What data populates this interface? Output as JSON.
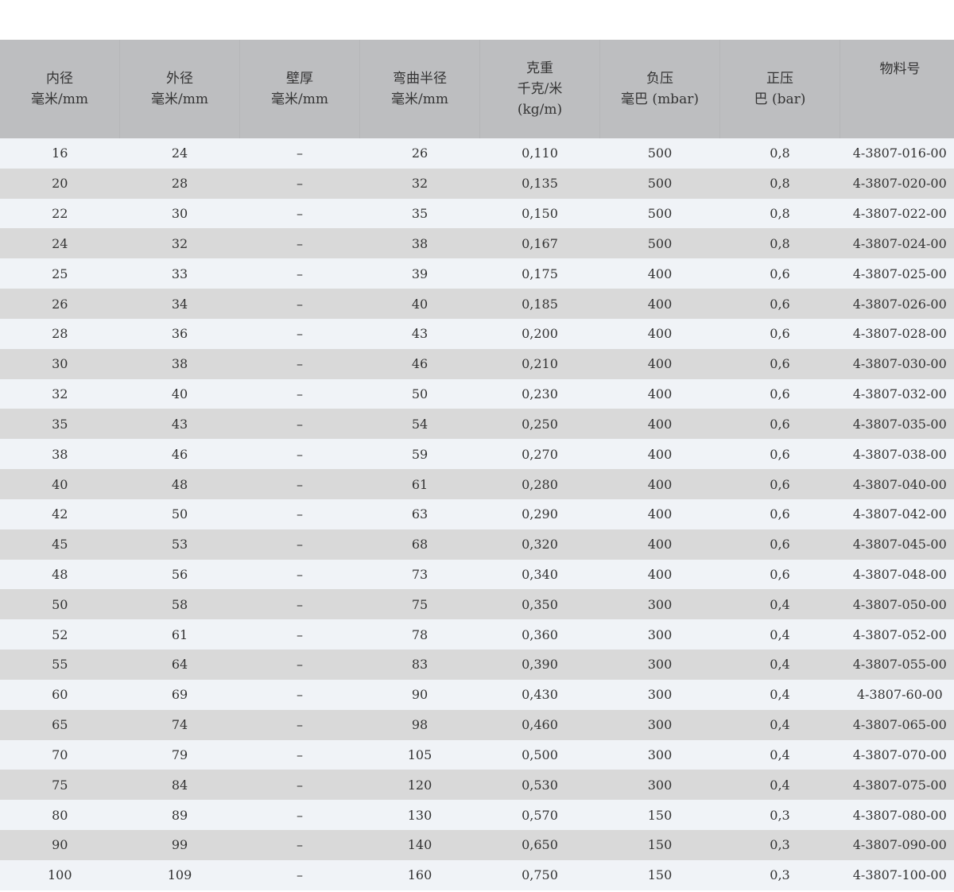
{
  "headers": [
    {
      "line1": "内径",
      "line2": "毫米/mm"
    },
    {
      "line1": "外径",
      "line2": "毫米/mm"
    },
    {
      "line1": "壁厚",
      "line2": "毫米/mm"
    },
    {
      "line1": "弯曲半径",
      "line2": "毫米/mm"
    },
    {
      "line1": "克重",
      "line2": "千克/米",
      "line3": "(kg/m)"
    },
    {
      "line1": "负压",
      "line2": "毫巴 (mbar)"
    },
    {
      "line1": "正压",
      "line2": "巴 (bar)"
    },
    {
      "line1": "物料号"
    }
  ],
  "rows": [
    [
      "16",
      "24",
      "–",
      "26",
      "0,110",
      "500",
      "0,8",
      "4-3807-016-00"
    ],
    [
      "20",
      "28",
      "–",
      "32",
      "0,135",
      "500",
      "0,8",
      "4-3807-020-00"
    ],
    [
      "22",
      "30",
      "–",
      "35",
      "0,150",
      "500",
      "0,8",
      "4-3807-022-00"
    ],
    [
      "24",
      "32",
      "–",
      "38",
      "0,167",
      "500",
      "0,8",
      "4-3807-024-00"
    ],
    [
      "25",
      "33",
      "–",
      "39",
      "0,175",
      "400",
      "0,6",
      "4-3807-025-00"
    ],
    [
      "26",
      "34",
      "–",
      "40",
      "0,185",
      "400",
      "0,6",
      "4-3807-026-00"
    ],
    [
      "28",
      "36",
      "–",
      "43",
      "0,200",
      "400",
      "0,6",
      "4-3807-028-00"
    ],
    [
      "30",
      "38",
      "–",
      "46",
      "0,210",
      "400",
      "0,6",
      "4-3807-030-00"
    ],
    [
      "32",
      "40",
      "–",
      "50",
      "0,230",
      "400",
      "0,6",
      "4-3807-032-00"
    ],
    [
      "35",
      "43",
      "–",
      "54",
      "0,250",
      "400",
      "0,6",
      "4-3807-035-00"
    ],
    [
      "38",
      "46",
      "–",
      "59",
      "0,270",
      "400",
      "0,6",
      "4-3807-038-00"
    ],
    [
      "40",
      "48",
      "–",
      "61",
      "0,280",
      "400",
      "0,6",
      "4-3807-040-00"
    ],
    [
      "42",
      "50",
      "–",
      "63",
      "0,290",
      "400",
      "0,6",
      "4-3807-042-00"
    ],
    [
      "45",
      "53",
      "–",
      "68",
      "0,320",
      "400",
      "0,6",
      "4-3807-045-00"
    ],
    [
      "48",
      "56",
      "–",
      "73",
      "0,340",
      "400",
      "0,6",
      "4-3807-048-00"
    ],
    [
      "50",
      "58",
      "–",
      "75",
      "0,350",
      "300",
      "0,4",
      "4-3807-050-00"
    ],
    [
      "52",
      "61",
      "–",
      "78",
      "0,360",
      "300",
      "0,4",
      "4-3807-052-00"
    ],
    [
      "55",
      "64",
      "–",
      "83",
      "0,390",
      "300",
      "0,4",
      "4-3807-055-00"
    ],
    [
      "60",
      "69",
      "–",
      "90",
      "0,430",
      "300",
      "0,4",
      "4-3807-60-00"
    ],
    [
      "65",
      "74",
      "–",
      "98",
      "0,460",
      "300",
      "0,4",
      "4-3807-065-00"
    ],
    [
      "70",
      "79",
      "–",
      "105",
      "0,500",
      "300",
      "0,4",
      "4-3807-070-00"
    ],
    [
      "75",
      "84",
      "–",
      "120",
      "0,530",
      "300",
      "0,4",
      "4-3807-075-00"
    ],
    [
      "80",
      "89",
      "–",
      "130",
      "0,570",
      "150",
      "0,3",
      "4-3807-080-00"
    ],
    [
      "90",
      "99",
      "–",
      "140",
      "0,650",
      "150",
      "0,3",
      "4-3807-090-00"
    ],
    [
      "100",
      "109",
      "–",
      "160",
      "0,750",
      "150",
      "0,3",
      "4-3807-100-00"
    ]
  ],
  "colors": {
    "header_bg": "#bdbec0",
    "row_light": "#f0f3f7",
    "row_dark": "#d9d9d9"
  }
}
